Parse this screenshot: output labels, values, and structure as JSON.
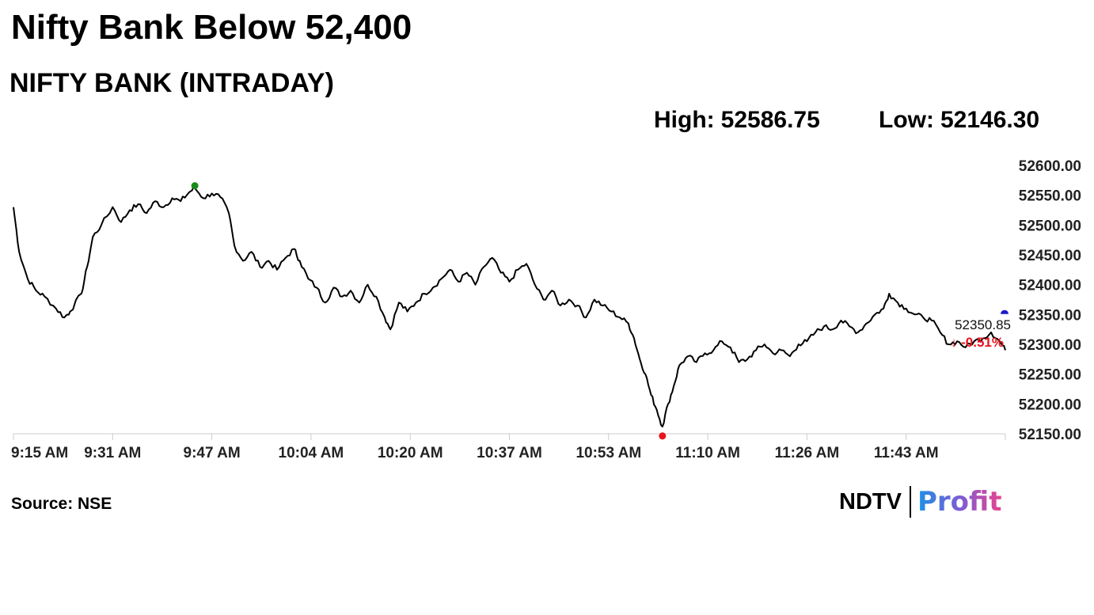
{
  "headline": "Nifty Bank Below 52,400",
  "subtitle": "NIFTY BANK (INTRADAY)",
  "stats": {
    "high_label": "High:",
    "high_value": "52586.75",
    "low_label": "Low:",
    "low_value": "52146.30"
  },
  "source": "Source: NSE",
  "logo": {
    "brand": "NDTV",
    "product": "Profit"
  },
  "colors": {
    "line": "#000000",
    "high_marker": "#1a8a1a",
    "low_marker": "#e8141e",
    "last_marker": "#1a1acc",
    "change_negative": "#e8141e",
    "axis": "#cccccc"
  },
  "chart_data": {
    "type": "line",
    "x": [
      "9:15 AM",
      "9:31 AM",
      "9:47 AM",
      "10:04 AM",
      "10:20 AM",
      "10:37 AM",
      "10:53 AM",
      "11:10 AM",
      "11:26 AM",
      "11:43 AM"
    ],
    "ylim": [
      52150,
      52600
    ],
    "y_ticks": [
      "52150.00",
      "52200.00",
      "52250.00",
      "52300.00",
      "52350.00",
      "52400.00",
      "52450.00",
      "52500.00",
      "52550.00",
      "52600.00"
    ],
    "grid": false,
    "series": [
      {
        "values": [
          [
            0,
            52530
          ],
          [
            2,
            52455
          ],
          [
            5,
            52410
          ],
          [
            8,
            52390
          ],
          [
            11,
            52380
          ],
          [
            15,
            52360
          ],
          [
            18,
            52345
          ],
          [
            20,
            52355
          ],
          [
            24,
            52385
          ],
          [
            26,
            52430
          ],
          [
            28,
            52480
          ],
          [
            31,
            52500
          ],
          [
            35,
            52530
          ],
          [
            38,
            52505
          ],
          [
            41,
            52525
          ],
          [
            44,
            52535
          ],
          [
            47,
            52520
          ],
          [
            50,
            52540
          ],
          [
            53,
            52530
          ],
          [
            56,
            52545
          ],
          [
            59,
            52540
          ],
          [
            62,
            52555
          ],
          [
            64,
            52562
          ],
          [
            67,
            52545
          ],
          [
            70,
            52553
          ],
          [
            73,
            52547
          ],
          [
            76,
            52520
          ],
          [
            78,
            52465
          ],
          [
            81,
            52440
          ],
          [
            84,
            52455
          ],
          [
            87,
            52430
          ],
          [
            90,
            52440
          ],
          [
            93,
            52425
          ],
          [
            96,
            52445
          ],
          [
            99,
            52460
          ],
          [
            101,
            52440
          ],
          [
            104,
            52410
          ],
          [
            107,
            52395
          ],
          [
            110,
            52370
          ],
          [
            113,
            52395
          ],
          [
            116,
            52380
          ],
          [
            119,
            52390
          ],
          [
            122,
            52370
          ],
          [
            125,
            52400
          ],
          [
            128,
            52380
          ],
          [
            131,
            52345
          ],
          [
            133,
            52325
          ],
          [
            136,
            52370
          ],
          [
            139,
            52355
          ],
          [
            142,
            52370
          ],
          [
            145,
            52385
          ],
          [
            148,
            52395
          ],
          [
            151,
            52410
          ],
          [
            154,
            52425
          ],
          [
            157,
            52405
          ],
          [
            160,
            52420
          ],
          [
            163,
            52400
          ],
          [
            166,
            52430
          ],
          [
            169,
            52445
          ],
          [
            172,
            52420
          ],
          [
            175,
            52405
          ],
          [
            178,
            52425
          ],
          [
            181,
            52435
          ],
          [
            184,
            52400
          ],
          [
            187,
            52375
          ],
          [
            190,
            52390
          ],
          [
            193,
            52365
          ],
          [
            196,
            52375
          ],
          [
            199,
            52365
          ],
          [
            202,
            52345
          ],
          [
            205,
            52375
          ],
          [
            208,
            52365
          ],
          [
            211,
            52355
          ],
          [
            214,
            52345
          ],
          [
            217,
            52335
          ],
          [
            219,
            52310
          ],
          [
            221,
            52275
          ],
          [
            223,
            52250
          ],
          [
            225,
            52215
          ],
          [
            227,
            52190
          ],
          [
            229,
            52162
          ],
          [
            231,
            52200
          ],
          [
            233,
            52230
          ],
          [
            235,
            52265
          ],
          [
            238,
            52280
          ],
          [
            241,
            52270
          ],
          [
            244,
            52285
          ],
          [
            247,
            52290
          ],
          [
            250,
            52305
          ],
          [
            253,
            52295
          ],
          [
            256,
            52270
          ],
          [
            259,
            52275
          ],
          [
            262,
            52290
          ],
          [
            265,
            52300
          ],
          [
            268,
            52285
          ],
          [
            271,
            52290
          ],
          [
            274,
            52280
          ],
          [
            277,
            52300
          ],
          [
            280,
            52305
          ],
          [
            283,
            52320
          ],
          [
            286,
            52330
          ],
          [
            289,
            52325
          ],
          [
            292,
            52340
          ],
          [
            295,
            52330
          ],
          [
            298,
            52320
          ],
          [
            301,
            52335
          ],
          [
            304,
            52350
          ],
          [
            307,
            52360
          ],
          [
            309,
            52385
          ],
          [
            312,
            52370
          ],
          [
            315,
            52360
          ],
          [
            318,
            52350
          ],
          [
            321,
            52345
          ],
          [
            324,
            52340
          ],
          [
            327,
            52320
          ],
          [
            330,
            52300
          ],
          [
            333,
            52305
          ],
          [
            336,
            52295
          ],
          [
            339,
            52305
          ],
          [
            342,
            52310
          ],
          [
            345,
            52320
          ],
          [
            348,
            52305
          ],
          [
            350,
            52290
          ]
        ]
      }
    ],
    "high": {
      "value": 52586.75
    },
    "low": {
      "value": 52146.3
    },
    "last": {
      "value": "52350.85",
      "change": "-0.51%",
      "arrow": "↓"
    }
  }
}
